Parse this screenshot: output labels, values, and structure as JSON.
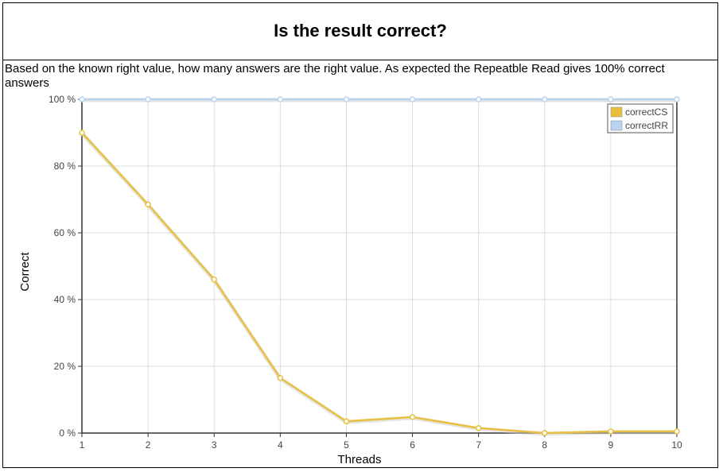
{
  "title": "Is the result correct?",
  "description": "Based on the known right value, how many answers are the right value. As expected the Repeatble Read gives 100% correct answers",
  "chart_data": {
    "type": "line",
    "x": [
      1,
      2,
      3,
      4,
      5,
      6,
      7,
      8,
      9,
      10
    ],
    "xlabel": "Threads",
    "ylabel": "Correct",
    "xlim": [
      1,
      10
    ],
    "ylim": [
      0,
      100
    ],
    "yticks": [
      "0 %",
      "20 %",
      "40 %",
      "60 %",
      "80 %",
      "100 %"
    ],
    "ytick_values": [
      0,
      20,
      40,
      60,
      80,
      100
    ],
    "grid": true,
    "legend_position": "top-right",
    "series": [
      {
        "name": "correctCS",
        "color": "#e8c040",
        "values": [
          90,
          68.5,
          46,
          16.5,
          3.5,
          4.8,
          1.5,
          0,
          0.5,
          0.5
        ]
      },
      {
        "name": "correctRR",
        "color": "#b8d4f0",
        "values": [
          100,
          100,
          100,
          100,
          100,
          100,
          100,
          100,
          100,
          100
        ]
      }
    ]
  }
}
